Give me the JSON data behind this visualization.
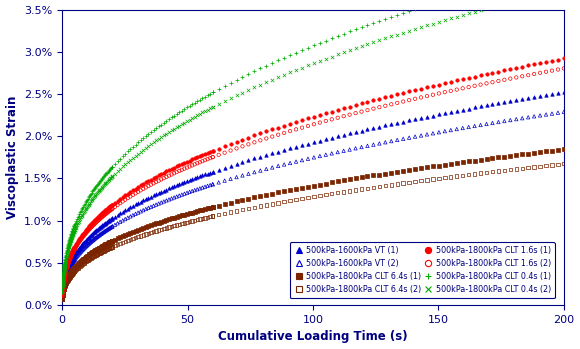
{
  "xlabel": "Cumulative Loading Time (s)",
  "ylabel": "Viscoplastic Strain",
  "xlim": [
    0,
    200
  ],
  "ylim": [
    0,
    0.035
  ],
  "yticks": [
    0.0,
    0.005,
    0.01,
    0.015,
    0.02,
    0.025,
    0.03,
    0.035
  ],
  "xticks": [
    0,
    50,
    100,
    150,
    200
  ],
  "series": [
    {
      "label": "500kPa-1600kPa VT (1)",
      "color": "#0000CC",
      "marker": "^",
      "fillstyle": "full",
      "a": 0.0032,
      "n": 0.39
    },
    {
      "label": "500kPa-1600kPa VT (2)",
      "color": "#0000CC",
      "marker": "^",
      "fillstyle": "none",
      "a": 0.0029,
      "n": 0.39
    },
    {
      "label": "500kPa-1800kPa CLT 6.4s (1)",
      "color": "#7B2400",
      "marker": "s",
      "fillstyle": "full",
      "a": 0.0024,
      "n": 0.385
    },
    {
      "label": "500kPa-1800kPa CLT 6.4s (2)",
      "color": "#7B2400",
      "marker": "s",
      "fillstyle": "none",
      "a": 0.00218,
      "n": 0.385
    },
    {
      "label": "500kPa-1800kPa CLT 1.6s (1)",
      "color": "#FF0000",
      "marker": "o",
      "fillstyle": "full",
      "a": 0.0037,
      "n": 0.39
    },
    {
      "label": "500kPa-1800kPa CLT 1.6s (2)",
      "color": "#FF0000",
      "marker": "o",
      "fillstyle": "none",
      "a": 0.00355,
      "n": 0.39
    },
    {
      "label": "500kPa-1800kPa CLT 0.4s (1)",
      "color": "#00AA00",
      "marker": "+",
      "fillstyle": "full",
      "a": 0.0051,
      "n": 0.39
    },
    {
      "label": "500kPa-1800kPa CLT 0.4s (2)",
      "color": "#00AA00",
      "marker": "x",
      "fillstyle": "full",
      "a": 0.00475,
      "n": 0.39
    }
  ],
  "background_color": "#FFFFFF",
  "figure_facecolor": "#FFFFFF",
  "axis_color": "#000080",
  "label_fontsize": 8.5,
  "tick_fontsize": 8,
  "legend_fontsize": 5.8
}
